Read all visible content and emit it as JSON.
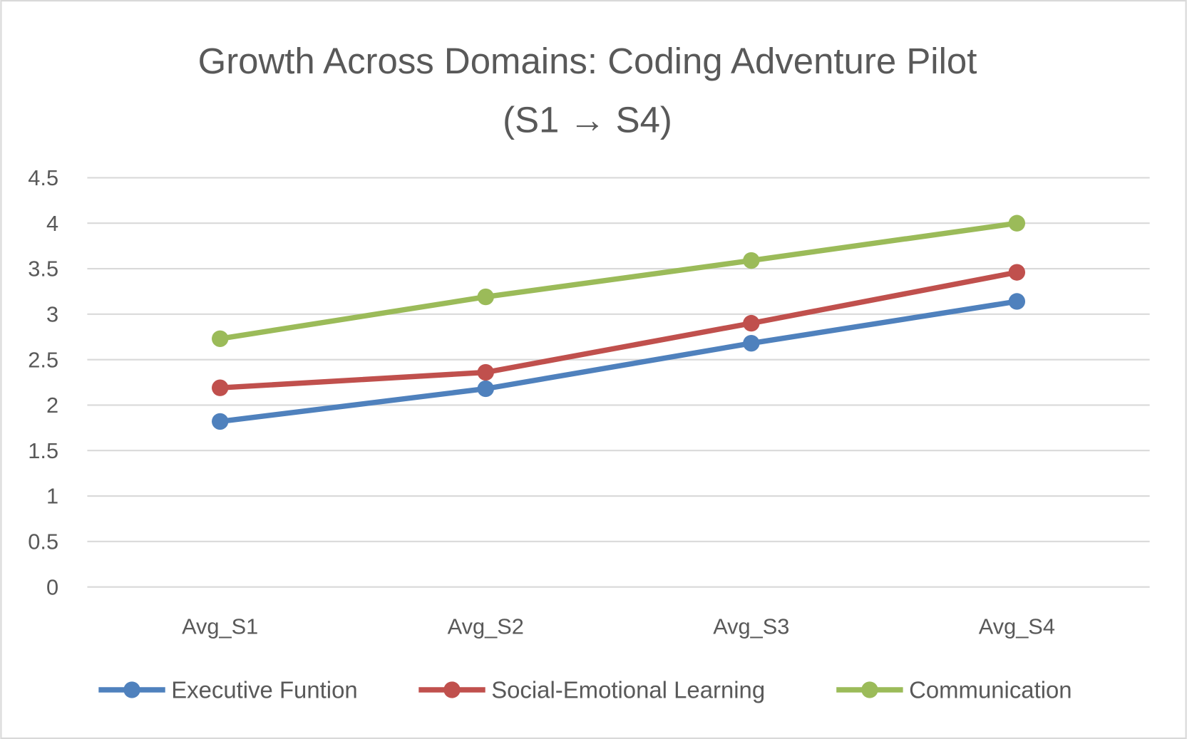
{
  "chart_data": {
    "type": "line",
    "title": [
      "Growth Across Domains: Coding Adventure Pilot",
      "(S1 → S4)"
    ],
    "xlabel": "",
    "ylabel": "",
    "categories": [
      "Avg_S1",
      "Avg_S2",
      "Avg_S3",
      "Avg_S4"
    ],
    "ylim": [
      0,
      4.5
    ],
    "yticks": [
      "0",
      "0.5",
      "1",
      "1.5",
      "2",
      "2.5",
      "3",
      "3.5",
      "4",
      "4.5"
    ],
    "grid": true,
    "legend_position": "bottom",
    "series": [
      {
        "name": "Executive Funtion",
        "color": "#4F81BD",
        "values": [
          1.82,
          2.18,
          2.68,
          3.14
        ]
      },
      {
        "name": "Social-Emotional Learning",
        "color": "#C0504D",
        "values": [
          2.19,
          2.36,
          2.9,
          3.46
        ]
      },
      {
        "name": "Communication",
        "color": "#9BBB59",
        "values": [
          2.73,
          3.19,
          3.59,
          4.0
        ]
      }
    ]
  }
}
